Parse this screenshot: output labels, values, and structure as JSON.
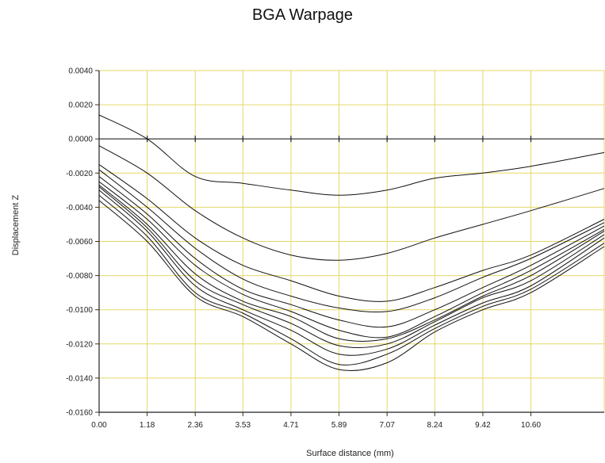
{
  "chart_data": {
    "type": "line",
    "title": "BGA Warpage",
    "xlabel": "Surface distance (mm)",
    "ylabel": "Displacement Z",
    "xlim": [
      0,
      12.4
    ],
    "ylim": [
      -0.016,
      0.004
    ],
    "x_ticks": [
      "0.00",
      "1.18",
      "2.36",
      "3.53",
      "4.71",
      "5.89",
      "7.07",
      "8.24",
      "9.42",
      "10.60"
    ],
    "y_ticks": [
      "0.0040",
      "0.0020",
      "0.0000",
      "-0.0020",
      "-0.0040",
      "-0.0060",
      "-0.0080",
      "-0.0100",
      "-0.0120",
      "-0.0140",
      "-0.0160"
    ],
    "grid": true,
    "grid_color": "#e6d86a",
    "line_color": "#111111",
    "x": [
      0,
      1.18,
      2.36,
      3.53,
      4.71,
      5.89,
      7.07,
      8.24,
      9.42,
      10.6,
      12.4
    ],
    "series": [
      {
        "values": [
          0.0014,
          0.0,
          -0.0022,
          -0.0026,
          -0.003,
          -0.0033,
          -0.003,
          -0.0023,
          -0.002,
          -0.0016,
          -0.0008
        ]
      },
      {
        "values": [
          -0.0004,
          -0.002,
          -0.0042,
          -0.0058,
          -0.0068,
          -0.0071,
          -0.0067,
          -0.0058,
          -0.005,
          -0.0042,
          -0.0029
        ]
      },
      {
        "values": [
          -0.0015,
          -0.0035,
          -0.0058,
          -0.0074,
          -0.0083,
          -0.0092,
          -0.0095,
          -0.0087,
          -0.0077,
          -0.0068,
          -0.0047
        ]
      },
      {
        "values": [
          -0.0018,
          -0.004,
          -0.0064,
          -0.0082,
          -0.0092,
          -0.0099,
          -0.0101,
          -0.0093,
          -0.0081,
          -0.007,
          -0.0049
        ]
      },
      {
        "values": [
          -0.0022,
          -0.0044,
          -0.007,
          -0.0088,
          -0.0097,
          -0.0106,
          -0.011,
          -0.01,
          -0.0087,
          -0.0074,
          -0.0051
        ]
      },
      {
        "values": [
          -0.0025,
          -0.0047,
          -0.0074,
          -0.0091,
          -0.0101,
          -0.0112,
          -0.0116,
          -0.0104,
          -0.009,
          -0.0077,
          -0.0053
        ]
      },
      {
        "values": [
          -0.0027,
          -0.005,
          -0.0079,
          -0.0095,
          -0.0104,
          -0.0117,
          -0.0117,
          -0.0106,
          -0.0092,
          -0.008,
          -0.0054
        ]
      },
      {
        "values": [
          -0.0028,
          -0.0052,
          -0.0083,
          -0.0097,
          -0.0108,
          -0.0121,
          -0.012,
          -0.0107,
          -0.0093,
          -0.0083,
          -0.0056
        ]
      },
      {
        "values": [
          -0.003,
          -0.0054,
          -0.0086,
          -0.01,
          -0.0112,
          -0.0126,
          -0.0123,
          -0.0109,
          -0.0096,
          -0.0086,
          -0.0058
        ]
      },
      {
        "values": [
          -0.0033,
          -0.0057,
          -0.009,
          -0.0102,
          -0.0117,
          -0.0132,
          -0.0126,
          -0.0111,
          -0.0098,
          -0.0088,
          -0.0061
        ]
      },
      {
        "values": [
          -0.0036,
          -0.006,
          -0.0092,
          -0.0104,
          -0.012,
          -0.0135,
          -0.0131,
          -0.0113,
          -0.01,
          -0.009,
          -0.0063
        ]
      }
    ]
  }
}
